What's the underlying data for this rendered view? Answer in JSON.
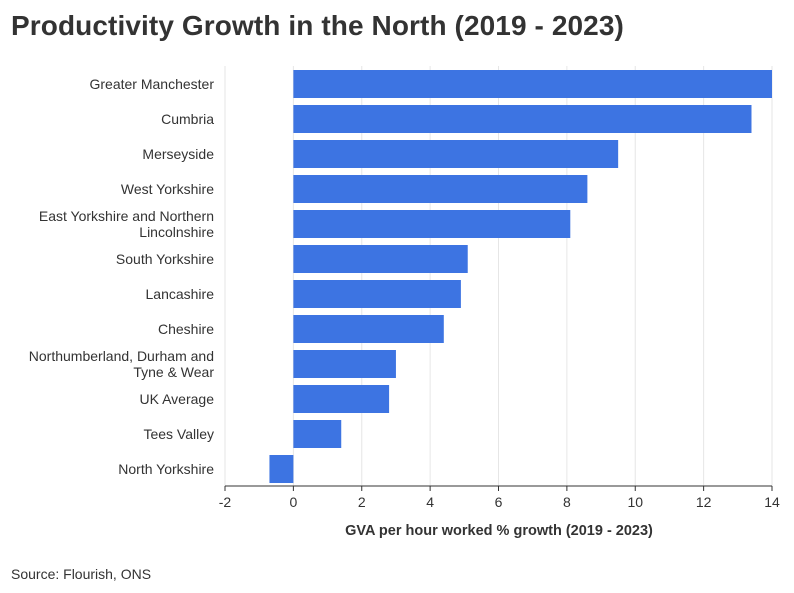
{
  "title": "Productivity Growth in the North (2019 - 2023)",
  "source": "Source: Flourish, ONS",
  "colors": {
    "bar": "#3d74e2",
    "grid": "#e6e6e6",
    "axis": "#333333",
    "text": "#333333"
  },
  "chart_data": {
    "type": "bar",
    "orientation": "horizontal",
    "title": "Productivity Growth in the North (2019 - 2023)",
    "xlabel": "GVA per hour worked % growth (2019 - 2023)",
    "ylabel": "",
    "xlim": [
      -2,
      14
    ],
    "xticks": [
      -2,
      0,
      2,
      4,
      6,
      8,
      10,
      12,
      14
    ],
    "grid": true,
    "categories": [
      "Greater Manchester",
      "Cumbria",
      "Merseyside",
      "West Yorkshire",
      "East Yorkshire and Northern Lincolnshire",
      "South Yorkshire",
      "Lancashire",
      "Cheshire",
      "Northumberland, Durham and Tyne & Wear",
      "UK Average",
      "Tees Valley",
      "North Yorkshire"
    ],
    "category_lines": [
      [
        "Greater Manchester"
      ],
      [
        "Cumbria"
      ],
      [
        "Merseyside"
      ],
      [
        "West Yorkshire"
      ],
      [
        "East Yorkshire and Northern",
        "Lincolnshire"
      ],
      [
        "South Yorkshire"
      ],
      [
        "Lancashire"
      ],
      [
        "Cheshire"
      ],
      [
        "Northumberland, Durham and",
        "Tyne & Wear"
      ],
      [
        "UK Average"
      ],
      [
        "Tees Valley"
      ],
      [
        "North Yorkshire"
      ]
    ],
    "values": [
      14.0,
      13.4,
      9.5,
      8.6,
      8.1,
      5.1,
      4.9,
      4.4,
      3.0,
      2.8,
      1.4,
      -0.7
    ]
  }
}
